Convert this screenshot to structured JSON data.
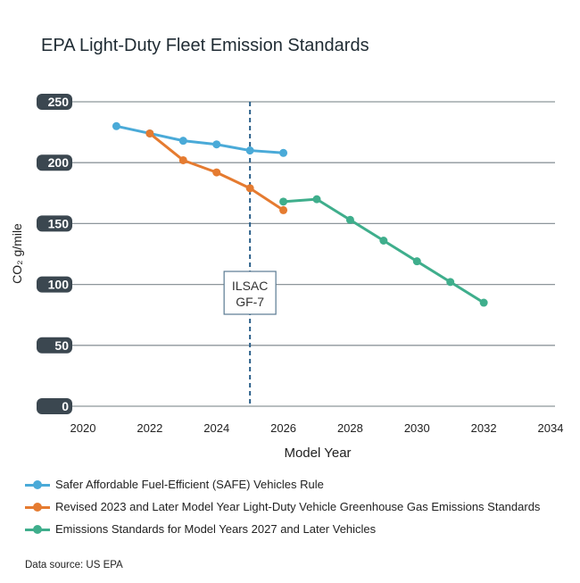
{
  "chart_data": {
    "type": "line",
    "title": "EPA Light-Duty Fleet Emission Standards",
    "xlabel": "Model Year",
    "ylabel": "CO₂ g/mile",
    "xlim": [
      2020,
      2034
    ],
    "ylim": [
      0,
      250
    ],
    "x_ticks": [
      2020,
      2022,
      2024,
      2026,
      2028,
      2030,
      2032,
      2034
    ],
    "y_ticks": [
      0,
      50,
      100,
      150,
      200,
      250
    ],
    "grid": "horizontal",
    "legend": "bottom",
    "series": [
      {
        "name": "Safer Affordable Fuel-Efficient (SAFE) Vehicles Rule",
        "color": "#4aaad8",
        "x": [
          2021,
          2022,
          2023,
          2024,
          2025,
          2026
        ],
        "values": [
          230,
          224,
          218,
          215,
          210,
          208
        ]
      },
      {
        "name": "Revised 2023 and Later Model Year Light-Duty Vehicle Greenhouse Gas Emissions Standards",
        "color": "#e57b30",
        "x": [
          2022,
          2023,
          2024,
          2025,
          2026
        ],
        "values": [
          224,
          202,
          192,
          179,
          161
        ]
      },
      {
        "name": "Emissions Standards for Model Years 2027 and Later Vehicles",
        "color": "#3fae8c",
        "x": [
          2026,
          2027,
          2028,
          2029,
          2030,
          2031,
          2032
        ],
        "values": [
          168,
          170,
          153,
          136,
          119,
          102,
          85
        ]
      }
    ],
    "annotations": [
      {
        "x": 2025,
        "line_style": "dashed",
        "color": "#2b5f8a",
        "label_lines": [
          "ILSAC",
          "GF-7"
        ]
      }
    ],
    "source": "Data source: US EPA"
  }
}
